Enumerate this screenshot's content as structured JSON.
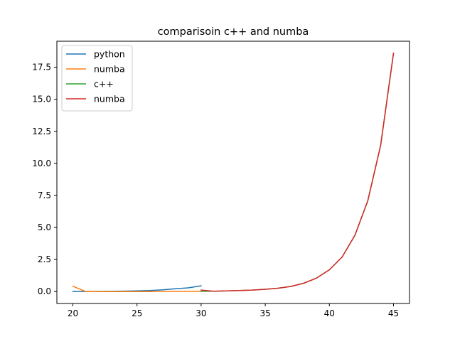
{
  "chart_data": {
    "type": "line",
    "title": "comparisoin c++ and numba",
    "xlabel": "",
    "ylabel": "",
    "xlim": [
      18.75,
      46.25
    ],
    "ylim": [
      -0.93,
      19.53
    ],
    "x_ticks": [
      20,
      25,
      30,
      35,
      40,
      45
    ],
    "x_tick_labels": [
      "20",
      "25",
      "30",
      "35",
      "40",
      "45"
    ],
    "y_ticks": [
      0,
      2.5,
      5,
      7.5,
      10,
      12.5,
      15,
      17.5
    ],
    "y_tick_labels": [
      "0.0",
      "2.5",
      "5.0",
      "7.5",
      "10.0",
      "12.5",
      "15.0",
      "17.5"
    ],
    "grid": false,
    "legend_position": "top-left",
    "series": [
      {
        "name": "python",
        "color": "#1f77b4",
        "x": [
          20,
          21,
          22,
          23,
          24,
          25,
          26,
          27,
          28,
          29,
          30
        ],
        "y": [
          0.005,
          0.008,
          0.013,
          0.02,
          0.033,
          0.053,
          0.086,
          0.14,
          0.22,
          0.29,
          0.45
        ]
      },
      {
        "name": "numba",
        "color": "#ff7f0e",
        "x": [
          20,
          21,
          22,
          23,
          24,
          25,
          26,
          27,
          28,
          29,
          30
        ],
        "y": [
          0.42,
          0.0,
          0.0,
          0.0,
          0.0,
          0.0,
          0.0,
          0.01,
          0.01,
          0.01,
          0.02
        ]
      },
      {
        "name": "c++",
        "color": "#2ca02c",
        "x": [
          30,
          31,
          32,
          33,
          34,
          35,
          36,
          37,
          38,
          39,
          40,
          41,
          42,
          43,
          44,
          45
        ],
        "y": [
          0.02,
          0.03,
          0.05,
          0.08,
          0.12,
          0.18,
          0.26,
          0.4,
          0.65,
          1.05,
          1.7,
          2.7,
          4.4,
          7.1,
          11.4,
          18.6
        ]
      },
      {
        "name": "numba",
        "color": "#d62728",
        "x": [
          30,
          31,
          32,
          33,
          34,
          35,
          36,
          37,
          38,
          39,
          40,
          41,
          42,
          43,
          44,
          45
        ],
        "y": [
          0.12,
          0.03,
          0.05,
          0.08,
          0.12,
          0.18,
          0.26,
          0.4,
          0.65,
          1.05,
          1.7,
          2.7,
          4.4,
          7.1,
          11.4,
          18.6
        ]
      }
    ]
  }
}
